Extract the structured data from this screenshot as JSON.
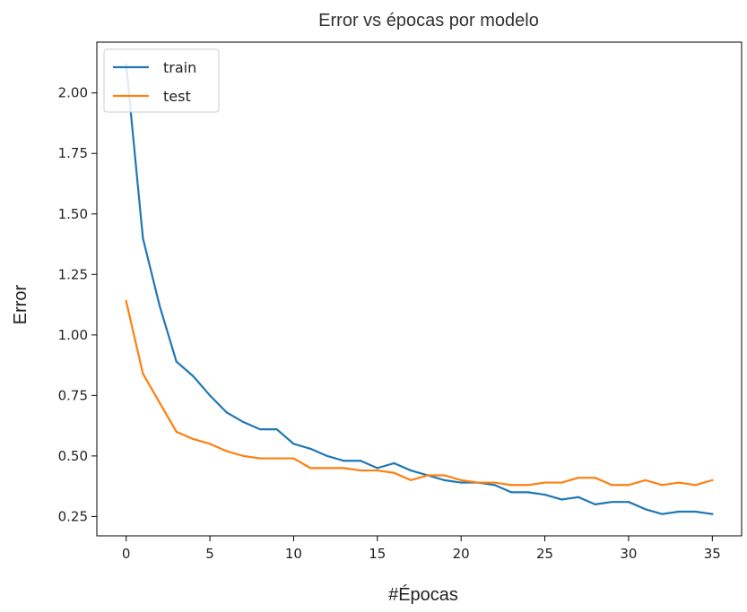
{
  "chart_data": {
    "type": "line",
    "title": "Error vs épocas por modelo",
    "xlabel": "#Épocas",
    "ylabel": "Error",
    "xlim": [
      -1.75,
      36.75
    ],
    "ylim": [
      0.17,
      2.21
    ],
    "xticks": [
      0,
      5,
      10,
      15,
      20,
      25,
      30,
      35
    ],
    "xtick_labels": [
      "0",
      "5",
      "10",
      "15",
      "20",
      "25",
      "30",
      "35"
    ],
    "yticks": [
      0.25,
      0.5,
      0.75,
      1.0,
      1.25,
      1.5,
      1.75,
      2.0
    ],
    "ytick_labels": [
      "0.25",
      "0.50",
      "0.75",
      "1.00",
      "1.25",
      "1.50",
      "1.75",
      "2.00"
    ],
    "grid": false,
    "legend_position": "top-left",
    "x": [
      0,
      1,
      2,
      3,
      4,
      5,
      6,
      7,
      8,
      9,
      10,
      11,
      12,
      13,
      14,
      15,
      16,
      17,
      18,
      19,
      20,
      21,
      22,
      23,
      24,
      25,
      26,
      27,
      28,
      29,
      30,
      31,
      32,
      33,
      34,
      35
    ],
    "series": [
      {
        "name": "train",
        "color": "#1f77b4",
        "values": [
          2.12,
          1.4,
          1.12,
          0.89,
          0.83,
          0.75,
          0.68,
          0.64,
          0.61,
          0.61,
          0.55,
          0.53,
          0.5,
          0.48,
          0.48,
          0.45,
          0.47,
          0.44,
          0.42,
          0.4,
          0.39,
          0.39,
          0.38,
          0.35,
          0.35,
          0.34,
          0.32,
          0.33,
          0.3,
          0.31,
          0.31,
          0.28,
          0.26,
          0.27,
          0.27,
          0.26
        ]
      },
      {
        "name": "test",
        "color": "#ff7f0e",
        "values": [
          1.14,
          0.84,
          0.72,
          0.6,
          0.57,
          0.55,
          0.52,
          0.5,
          0.49,
          0.49,
          0.49,
          0.45,
          0.45,
          0.45,
          0.44,
          0.44,
          0.43,
          0.4,
          0.42,
          0.42,
          0.4,
          0.39,
          0.39,
          0.38,
          0.38,
          0.39,
          0.39,
          0.41,
          0.41,
          0.38,
          0.38,
          0.4,
          0.38,
          0.39,
          0.38,
          0.4
        ]
      }
    ]
  }
}
